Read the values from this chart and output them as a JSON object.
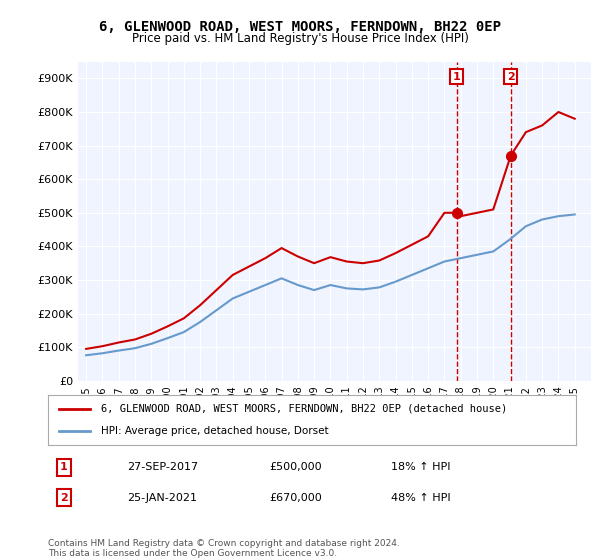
{
  "title": "6, GLENWOOD ROAD, WEST MOORS, FERNDOWN, BH22 0EP",
  "subtitle": "Price paid vs. HM Land Registry's House Price Index (HPI)",
  "xlabel": "",
  "ylabel": "",
  "background_color": "#ffffff",
  "plot_bg_color": "#f0f4ff",
  "grid_color": "#ffffff",
  "legend_line1": "6, GLENWOOD ROAD, WEST MOORS, FERNDOWN, BH22 0EP (detached house)",
  "legend_line2": "HPI: Average price, detached house, Dorset",
  "annotation1": {
    "label": "1",
    "date": "27-SEP-2017",
    "price": "£500,000",
    "hpi": "18% ↑ HPI"
  },
  "annotation2": {
    "label": "2",
    "date": "25-JAN-2021",
    "price": "£670,000",
    "hpi": "48% ↑ HPI"
  },
  "footer": "Contains HM Land Registry data © Crown copyright and database right 2024.\nThis data is licensed under the Open Government Licence v3.0.",
  "red_color": "#cc0000",
  "blue_color": "#6699cc",
  "marker_color1": "#cc0000",
  "marker_color2": "#cc0000",
  "vline_color": "#cc0000",
  "yticks": [
    0,
    100000,
    200000,
    300000,
    400000,
    500000,
    600000,
    700000,
    800000,
    900000
  ],
  "ylim": [
    0,
    950000
  ],
  "xlim_start": 1994.5,
  "xlim_end": 2026.0
}
